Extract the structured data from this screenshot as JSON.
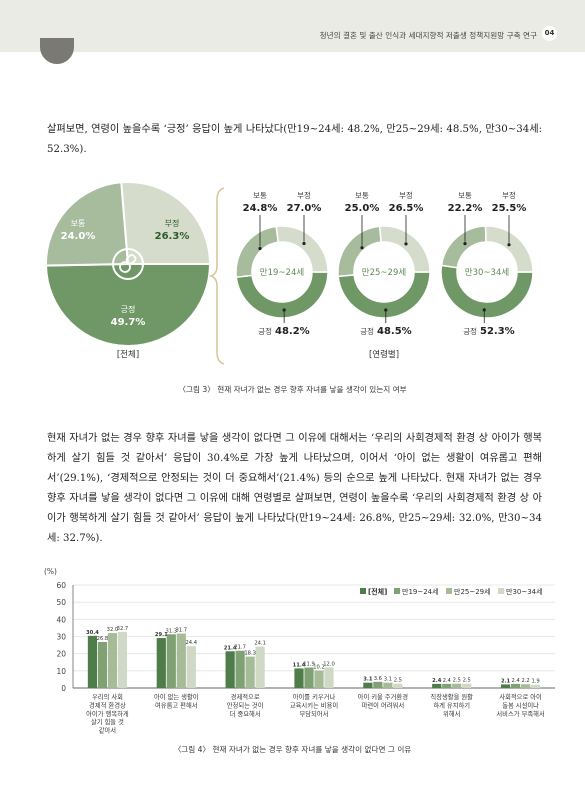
{
  "header": {
    "running_title": "청년의 결혼 및 출산 인식과 세대지향적 저출생 정책지원망 구축 연구",
    "page_number": "04"
  },
  "paragraph1": "살펴보면, 연령이 높을수록 ‘긍정’ 응답이 높게 나타났다(만19~24세: 48.2%, 만25~29세: 48.5%, 만30~34세: 52.3%).",
  "paragraph2": "현재 자녀가 없는 경우 향후 자녀를 낳을 생각이 없다면 그 이유에 대해서는 ‘우리의 사회경제적 환경 상 아이가 행복하게 살기 힘들 것 같아서’ 응답이 30.4%로 가장 높게 나타났으며, 이어서 ‘아이 없는 생활이 여유롭고 편해서’(29.1%), ‘경제적으로 안정되는 것이 더 중요해서’(21.4%) 등의 순으로 높게 나타났다. 현재 자녀가 없는 경우 향후 자녀를 낳을 생각이 없다면 그 이유에 대해 연령별로 살펴보면, 연령이 높을수록 ‘우리의 사회경제적 환경 상 아이가 행복하게 살기 힘들 것 같아서’ 응답이 높게 나타났다(만19~24세: 26.8%, 만25~29세: 32.0%, 만30~34세: 32.7%).",
  "figure3": {
    "caption": "〈그림 3〉 현재 자녀가 없는 경우 향후 자녀를 낳을 생각이 있는지 여부",
    "total_label": "[전체]",
    "byage_label": "[연령별]",
    "icon": "baby-pacifier-icon"
  },
  "figure4": {
    "caption": "〈그림 4〉 현재 자녀가 없는 경우 향후 자녀를 낳을 생각이 없다면 그 이유"
  },
  "colors": {
    "positive": "#6f9866",
    "neutral": "#a7bb9d",
    "negative": "#d5dccc",
    "dark": "#4f7d4a"
  },
  "chart_data": [
    {
      "type": "pie",
      "title": "[전체]",
      "labels": [
        "보통",
        "부정",
        "긍정"
      ],
      "values": [
        24.0,
        26.3,
        49.7
      ],
      "value_labels": [
        "24.0%",
        "26.3%",
        "49.7%"
      ]
    },
    {
      "type": "pie",
      "title": "[연령별]",
      "groups": [
        {
          "name": "만19~24세",
          "labels": [
            "보통",
            "부정",
            "긍정"
          ],
          "values": [
            24.8,
            27.0,
            48.2
          ],
          "value_labels": [
            "24.8%",
            "27.0%",
            "48.2%"
          ]
        },
        {
          "name": "만25~29세",
          "labels": [
            "보통",
            "부정",
            "긍정"
          ],
          "values": [
            25.0,
            26.5,
            48.5
          ],
          "value_labels": [
            "25.0%",
            "26.5%",
            "48.5%"
          ]
        },
        {
          "name": "만30~34세",
          "labels": [
            "보통",
            "부정",
            "긍정"
          ],
          "values": [
            22.2,
            25.5,
            52.3
          ],
          "value_labels": [
            "22.2%",
            "25.5%",
            "52.3%"
          ]
        }
      ]
    },
    {
      "type": "bar",
      "ylabel": "(%)",
      "ylim": [
        0,
        60
      ],
      "yticks": [
        0,
        10,
        20,
        30,
        40,
        50,
        60
      ],
      "grid": true,
      "legend_position": "top-right",
      "categories": [
        [
          "우리의 사회",
          "경제적 환경상",
          "아이가 행복하게",
          "살기 힘들 것",
          "같아서"
        ],
        [
          "아이 없는 생활이",
          "여유롭고 편해서"
        ],
        [
          "경제적으로",
          "안정되는 것이",
          "더 중요해서"
        ],
        [
          "아이를 키우거나",
          "교육시키는 비용이",
          "부담되어서"
        ],
        [
          "아이 키울 주거환경",
          "마련이 어려워서"
        ],
        [
          "직장생활을 원활",
          "하게 유지하기",
          "위해서"
        ],
        [
          "사회적으로 아이",
          "돌봄 시설이나",
          "서비스가 부족해서"
        ]
      ],
      "series": [
        {
          "name": "[전체]",
          "color": "#4f7d4a",
          "values": [
            30.4,
            29.1,
            21.4,
            11.4,
            3.1,
            2.4,
            2.1
          ]
        },
        {
          "name": "만19~24세",
          "color": "#7fa173",
          "values": [
            26.8,
            31.3,
            21.7,
            11.9,
            3.6,
            2.4,
            2.4
          ]
        },
        {
          "name": "만25~29세",
          "color": "#a6bb97",
          "values": [
            32.0,
            31.7,
            18.3,
            10.2,
            3.1,
            2.5,
            2.2
          ]
        },
        {
          "name": "만30~34세",
          "color": "#cfd9c5",
          "values": [
            32.7,
            24.4,
            24.1,
            12.0,
            2.5,
            2.5,
            1.9
          ]
        }
      ],
      "value_labels": [
        [
          "30.4",
          "29.1",
          "21.4",
          "11.4",
          "3.1",
          "2.4",
          "2.1"
        ],
        [
          "26.8",
          "31.3",
          "21.7",
          "11.9",
          "3.6",
          "2.4",
          "2.4"
        ],
        [
          "32.0",
          "31.7",
          "18.3",
          "10.2",
          "3.1",
          "2.5",
          "2.2"
        ],
        [
          "32.7",
          "24.4",
          "24.1",
          "12.0",
          "2.5",
          "2.5",
          "1.9"
        ]
      ]
    }
  ]
}
